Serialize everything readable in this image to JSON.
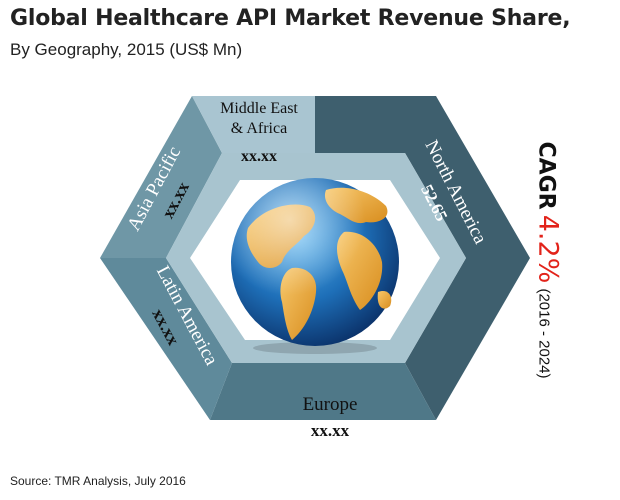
{
  "header": {
    "title": "Global Healthcare API Market Revenue Share,",
    "subtitle": "By Geography, 2015 (US$ Mn)"
  },
  "source": "Source: TMR Analysis, July 2016",
  "cagr": {
    "label": "CAGR",
    "value": "4.2%",
    "period": "(2016 - 2024)"
  },
  "colors": {
    "north_america": "#3e5f6e",
    "europe": "#4f7888",
    "latin_america": "#5f8a9b",
    "asia_pacific": "#6f97a6",
    "middle_east_africa": "#a9c5d1",
    "inner_ring": "#a8c4cf",
    "cagr_value": "#e2231a"
  },
  "chart_data": {
    "type": "hexagon-segments",
    "title": "Global Healthcare API Market Revenue Share,",
    "subtitle": "By Geography, 2015 (US$ Mn)",
    "segments": [
      {
        "name": "North America",
        "label": "North America",
        "value": "52.65"
      },
      {
        "name": "Europe",
        "label": "Europe",
        "value": "xx.xx"
      },
      {
        "name": "Latin America",
        "label": "Latin America",
        "value": "xx.xx"
      },
      {
        "name": "Asia Pacific",
        "label": "Asia Pacific",
        "value": "xx.xx"
      },
      {
        "name": "Middle East & Africa",
        "label_lines": [
          "Middle East",
          "& Africa"
        ],
        "value": "xx.xx"
      }
    ],
    "center_graphic": "globe-icon"
  }
}
